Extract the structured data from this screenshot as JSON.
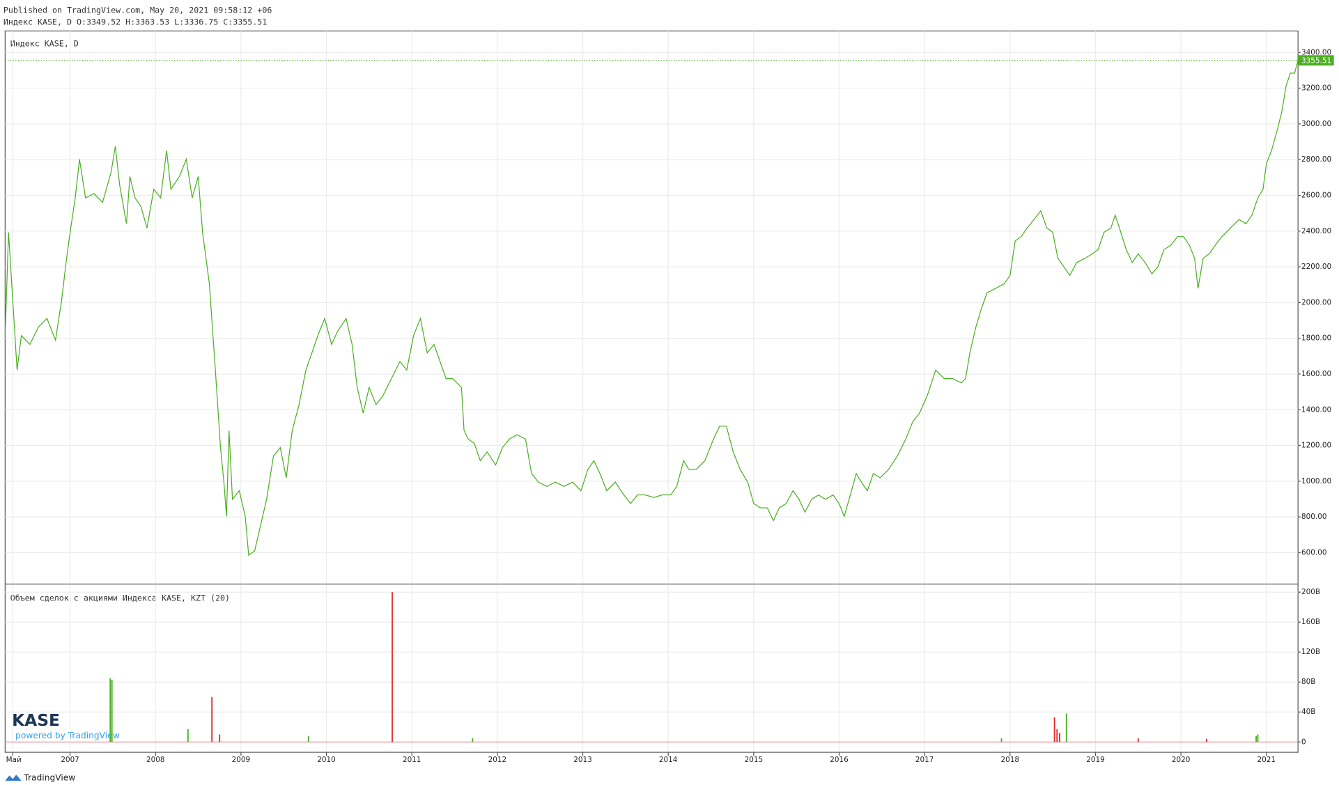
{
  "header": {
    "published": "Published on TradingView.com, May 20, 2021 09:58:12 +06",
    "ohlc": "Индекс KASE, D O:3349.52 H:3363.53 L:3336.75 C:3355.51"
  },
  "logo": {
    "name": "KASE",
    "powered": "powered by TradingView"
  },
  "footer": {
    "brand": "TradingView"
  },
  "chart_data": [
    {
      "type": "line",
      "title": "Индекс KASE, D",
      "color": "#4caf22",
      "grid": true,
      "xlim": [
        2006.24,
        2021.37
      ],
      "xticks": [
        {
          "value": 2006.33,
          "label": "Май"
        },
        2007,
        2008,
        2009,
        2010,
        2011,
        2012,
        2013,
        2014,
        2015,
        2016,
        2017,
        2018,
        2019,
        2020,
        2021
      ],
      "ylim": [
        427,
        3520
      ],
      "yticks": [
        {
          "value": 600,
          "label": "600.00"
        },
        {
          "value": 800,
          "label": "800.00"
        },
        {
          "value": 1000,
          "label": "1000.00"
        },
        {
          "value": 1200,
          "label": "1200.00"
        },
        {
          "value": 1400,
          "label": "1400.00"
        },
        {
          "value": 1600,
          "label": "1600.00"
        },
        {
          "value": 1800,
          "label": "1800.00"
        },
        {
          "value": 2000,
          "label": "2000.00"
        },
        {
          "value": 2200,
          "label": "2200.00"
        },
        {
          "value": 2400,
          "label": "2400.00"
        },
        {
          "value": 2600,
          "label": "2600.00"
        },
        {
          "value": 2800,
          "label": "2800.00"
        },
        {
          "value": 3000,
          "label": "3000.00"
        },
        {
          "value": 3200,
          "label": "3200.00"
        },
        {
          "value": 3400,
          "label": "3400.00"
        }
      ],
      "last_value": 3355.51,
      "last_value_label": "3355.51",
      "x": [
        2006.24,
        2006.28,
        2006.33,
        2006.38,
        2006.43,
        2006.53,
        2006.63,
        2006.73,
        2006.83,
        2006.9,
        2006.96,
        2007.0,
        2007.06,
        2007.11,
        2007.18,
        2007.28,
        2007.38,
        2007.48,
        2007.53,
        2007.58,
        2007.66,
        2007.7,
        2007.76,
        2007.83,
        2007.9,
        2007.98,
        2008.06,
        2008.13,
        2008.18,
        2008.28,
        2008.36,
        2008.43,
        2008.5,
        2008.55,
        2008.63,
        2008.7,
        2008.76,
        2008.8,
        2008.83,
        2008.86,
        2008.9,
        2008.98,
        2009.05,
        2009.09,
        2009.16,
        2009.23,
        2009.3,
        2009.38,
        2009.46,
        2009.53,
        2009.6,
        2009.68,
        2009.76,
        2009.83,
        2009.9,
        2009.98,
        2010.06,
        2010.13,
        2010.23,
        2010.3,
        2010.36,
        2010.43,
        2010.5,
        2010.58,
        2010.66,
        2010.76,
        2010.86,
        2010.94,
        2011.02,
        2011.1,
        2011.18,
        2011.26,
        2011.33,
        2011.4,
        2011.48,
        2011.58,
        2011.61,
        2011.66,
        2011.73,
        2011.8,
        2011.88,
        2011.98,
        2012.06,
        2012.14,
        2012.23,
        2012.33,
        2012.4,
        2012.48,
        2012.58,
        2012.68,
        2012.78,
        2012.88,
        2012.98,
        2013.06,
        2013.13,
        2013.2,
        2013.28,
        2013.38,
        2013.48,
        2013.56,
        2013.64,
        2013.73,
        2013.83,
        2013.93,
        2014.03,
        2014.1,
        2014.18,
        2014.24,
        2014.33,
        2014.43,
        2014.53,
        2014.6,
        2014.68,
        2014.76,
        2014.84,
        2014.93,
        2015.0,
        2015.08,
        2015.16,
        2015.23,
        2015.3,
        2015.38,
        2015.46,
        2015.53,
        2015.6,
        2015.68,
        2015.76,
        2015.84,
        2015.93,
        2016.0,
        2016.06,
        2016.13,
        2016.2,
        2016.26,
        2016.33,
        2016.4,
        2016.48,
        2016.58,
        2016.68,
        2016.78,
        2016.86,
        2016.94,
        2017.03,
        2017.13,
        2017.23,
        2017.33,
        2017.43,
        2017.48,
        2017.53,
        2017.6,
        2017.66,
        2017.73,
        2017.83,
        2017.93,
        2018.0,
        2018.06,
        2018.13,
        2018.2,
        2018.28,
        2018.36,
        2018.43,
        2018.5,
        2018.56,
        2018.63,
        2018.7,
        2018.78,
        2018.88,
        2018.96,
        2019.03,
        2019.1,
        2019.18,
        2019.23,
        2019.28,
        2019.36,
        2019.43,
        2019.5,
        2019.58,
        2019.66,
        2019.73,
        2019.8,
        2019.88,
        2019.96,
        2020.03,
        2020.1,
        2020.16,
        2020.2,
        2020.26,
        2020.33,
        2020.4,
        2020.48,
        2020.58,
        2020.68,
        2020.76,
        2020.83,
        2020.9,
        2020.96,
        2021.0,
        2021.06,
        2021.13,
        2021.18,
        2021.23,
        2021.28,
        2021.33,
        2021.37
      ],
      "values": [
        1815,
        2393,
        2007,
        1622,
        1815,
        1766,
        1863,
        1911,
        1790,
        2007,
        2248,
        2393,
        2586,
        2802,
        2586,
        2610,
        2561,
        2730,
        2875,
        2658,
        2441,
        2706,
        2586,
        2537,
        2417,
        2634,
        2586,
        2851,
        2634,
        2706,
        2802,
        2586,
        2706,
        2393,
        2104,
        1622,
        1188,
        995,
        803,
        1284,
        899,
        947,
        803,
        586,
        610,
        754,
        899,
        1140,
        1188,
        1019,
        1284,
        1429,
        1622,
        1718,
        1815,
        1911,
        1766,
        1839,
        1911,
        1766,
        1525,
        1381,
        1525,
        1429,
        1477,
        1574,
        1670,
        1622,
        1815,
        1911,
        1718,
        1766,
        1670,
        1574,
        1574,
        1525,
        1284,
        1236,
        1212,
        1115,
        1164,
        1091,
        1188,
        1236,
        1260,
        1236,
        1043,
        995,
        971,
        995,
        971,
        995,
        947,
        1067,
        1115,
        1043,
        947,
        995,
        923,
        875,
        923,
        923,
        909,
        923,
        923,
        971,
        1115,
        1067,
        1067,
        1115,
        1236,
        1308,
        1308,
        1164,
        1067,
        995,
        875,
        851,
        851,
        779,
        851,
        875,
        947,
        899,
        827,
        899,
        923,
        899,
        923,
        875,
        803,
        923,
        1043,
        995,
        947,
        1043,
        1019,
        1067,
        1140,
        1236,
        1332,
        1381,
        1477,
        1622,
        1574,
        1574,
        1550,
        1574,
        1718,
        1863,
        1959,
        2055,
        2079,
        2104,
        2152,
        2345,
        2369,
        2417,
        2465,
        2514,
        2417,
        2393,
        2248,
        2200,
        2152,
        2224,
        2248,
        2272,
        2296,
        2393,
        2417,
        2489,
        2417,
        2296,
        2224,
        2272,
        2224,
        2161,
        2200,
        2296,
        2320,
        2369,
        2369,
        2320,
        2248,
        2079,
        2248,
        2272,
        2320,
        2369,
        2417,
        2465,
        2441,
        2489,
        2586,
        2634,
        2778,
        2851,
        2971,
        3067,
        3212,
        3284,
        3284,
        3356
      ]
    },
    {
      "type": "bar",
      "title": "Объем сделок с акциями Индекса KASE, KZT (20)",
      "grid": true,
      "xlim": [
        2006.24,
        2021.37
      ],
      "ylim": [
        -12600000000,
        210300000000
      ],
      "yticks": [
        0,
        {
          "value": 40000000000,
          "label": "40B"
        },
        {
          "value": 80000000000,
          "label": "80B"
        },
        {
          "value": 120000000000,
          "label": "120B"
        },
        {
          "value": 160000000000,
          "label": "160B"
        },
        {
          "value": 200000000000,
          "label": "200B"
        }
      ],
      "x": [
        2007.47,
        2007.49,
        2008.38,
        2008.66,
        2008.75,
        2009.79,
        2010.77,
        2011.71,
        2017.9,
        2018.52,
        2018.55,
        2018.58,
        2018.66,
        2019.5,
        2020.3,
        2020.88,
        2020.9
      ],
      "values": [
        85000000000,
        83000000000,
        17000000000,
        60000000000,
        10000000000,
        8000000000,
        200000000000,
        5000000000,
        5000000000,
        33000000000,
        17000000000,
        12000000000,
        38000000000,
        5000000000,
        4000000000,
        8000000000,
        10000000000
      ],
      "colors": [
        "#4caf22",
        "#4caf22",
        "#4caf22",
        "#e0292b",
        "#e0292b",
        "#4caf22",
        "#e0292b",
        "#4caf22",
        "#4caf22",
        "#e0292b",
        "#e0292b",
        "#e0292b",
        "#4caf22",
        "#e0292b",
        "#e0292b",
        "#4caf22",
        "#4caf22"
      ]
    }
  ]
}
